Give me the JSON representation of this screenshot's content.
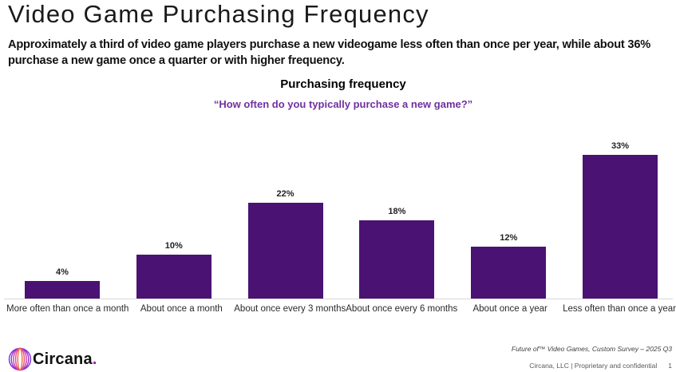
{
  "page": {
    "title": "Video Game Purchasing Frequency",
    "description": "Approximately a third of video game players purchase a new videogame less often than once per year, while about 36% purchase a new game once a quarter or with higher frequency."
  },
  "chart_data": {
    "type": "bar",
    "title": "Purchasing frequency",
    "subtitle": "“How often do you typically purchase a new game?”",
    "categories": [
      "More often than once a month",
      "About once a month",
      "About once every 3 months",
      "About once every 6 months",
      "About once a year",
      "Less often than once a year"
    ],
    "values": [
      4,
      10,
      22,
      18,
      12,
      33
    ],
    "value_labels": [
      "4%",
      "10%",
      "22%",
      "18%",
      "12%",
      "33%"
    ],
    "xlabel": "",
    "ylabel": "",
    "ylim": [
      0,
      37
    ],
    "grid": false,
    "legend": "none",
    "bar_color": "#4a1272",
    "baseline_color": "#d9d9d9",
    "subtitle_color": "#7030a0"
  },
  "footer": {
    "source_line": "Future of™ Video Games, Custom Survey – 2025 Q3",
    "confidential_line": "Circana, LLC |  Proprietary and confidential",
    "page_number": "1",
    "logo_text": "Circana",
    "logo_period": "."
  },
  "colors": {
    "accent_purple": "#7030a0",
    "bar_purple": "#4a1272",
    "logo_gradient": [
      "#7b2fd4",
      "#9932cc",
      "#c93ab0",
      "#e64a86",
      "#f06a3c"
    ]
  }
}
